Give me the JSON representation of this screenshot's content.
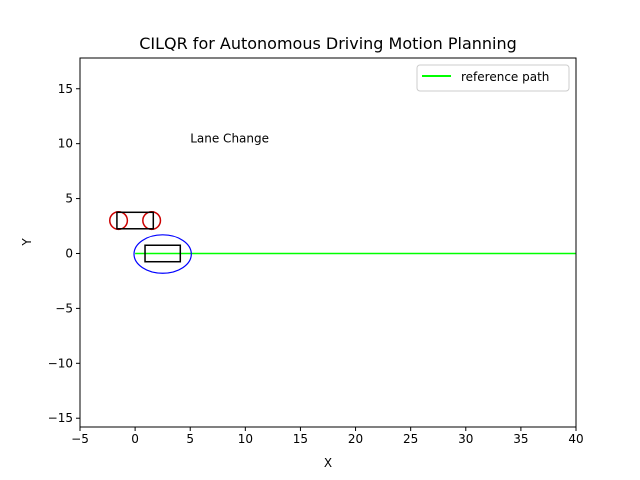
{
  "chart_data": {
    "type": "line",
    "title": "CILQR for Autonomous Driving Motion Planning",
    "xlabel": "X",
    "ylabel": "Y",
    "xlim": [
      -5,
      40
    ],
    "ylim": [
      -15.8,
      17.8
    ],
    "xticks": [
      -5,
      0,
      5,
      10,
      15,
      20,
      25,
      30,
      35,
      40
    ],
    "yticks": [
      -15,
      -10,
      -5,
      0,
      5,
      10,
      15
    ],
    "xtick_labels": [
      "−5",
      "0",
      "5",
      "10",
      "15",
      "20",
      "25",
      "30",
      "35",
      "40"
    ],
    "ytick_labels": [
      "−15",
      "−10",
      "−5",
      "0",
      "5",
      "10",
      "15"
    ],
    "grid": false,
    "legend_position": "upper-right",
    "series": [
      {
        "name": "reference path",
        "color": "#00ff00",
        "x": [
          0,
          40
        ],
        "y": [
          0,
          0
        ]
      }
    ],
    "annotations": [
      {
        "text": "Lane Change",
        "x": 5,
        "y": 10
      }
    ],
    "ego_vehicle": {
      "rect": {
        "x_min": 0.9,
        "x_max": 4.1,
        "y_min": -0.75,
        "y_max": 0.75,
        "color": "#000000"
      },
      "safety_ellipse": {
        "cx": 2.5,
        "cy": -0.05,
        "rx": 2.6,
        "ry": 1.75,
        "color": "#0000ff"
      }
    },
    "obstacle_vehicle": {
      "rect": {
        "x_min": -1.65,
        "x_max": 1.65,
        "y_min": 2.25,
        "y_max": 3.75,
        "color": "#000000"
      },
      "circles": [
        {
          "cx": -1.5,
          "cy": 3.0,
          "r": 0.8,
          "color": "#cc0000"
        },
        {
          "cx": 1.5,
          "cy": 3.0,
          "r": 0.8,
          "color": "#cc0000"
        }
      ]
    }
  }
}
